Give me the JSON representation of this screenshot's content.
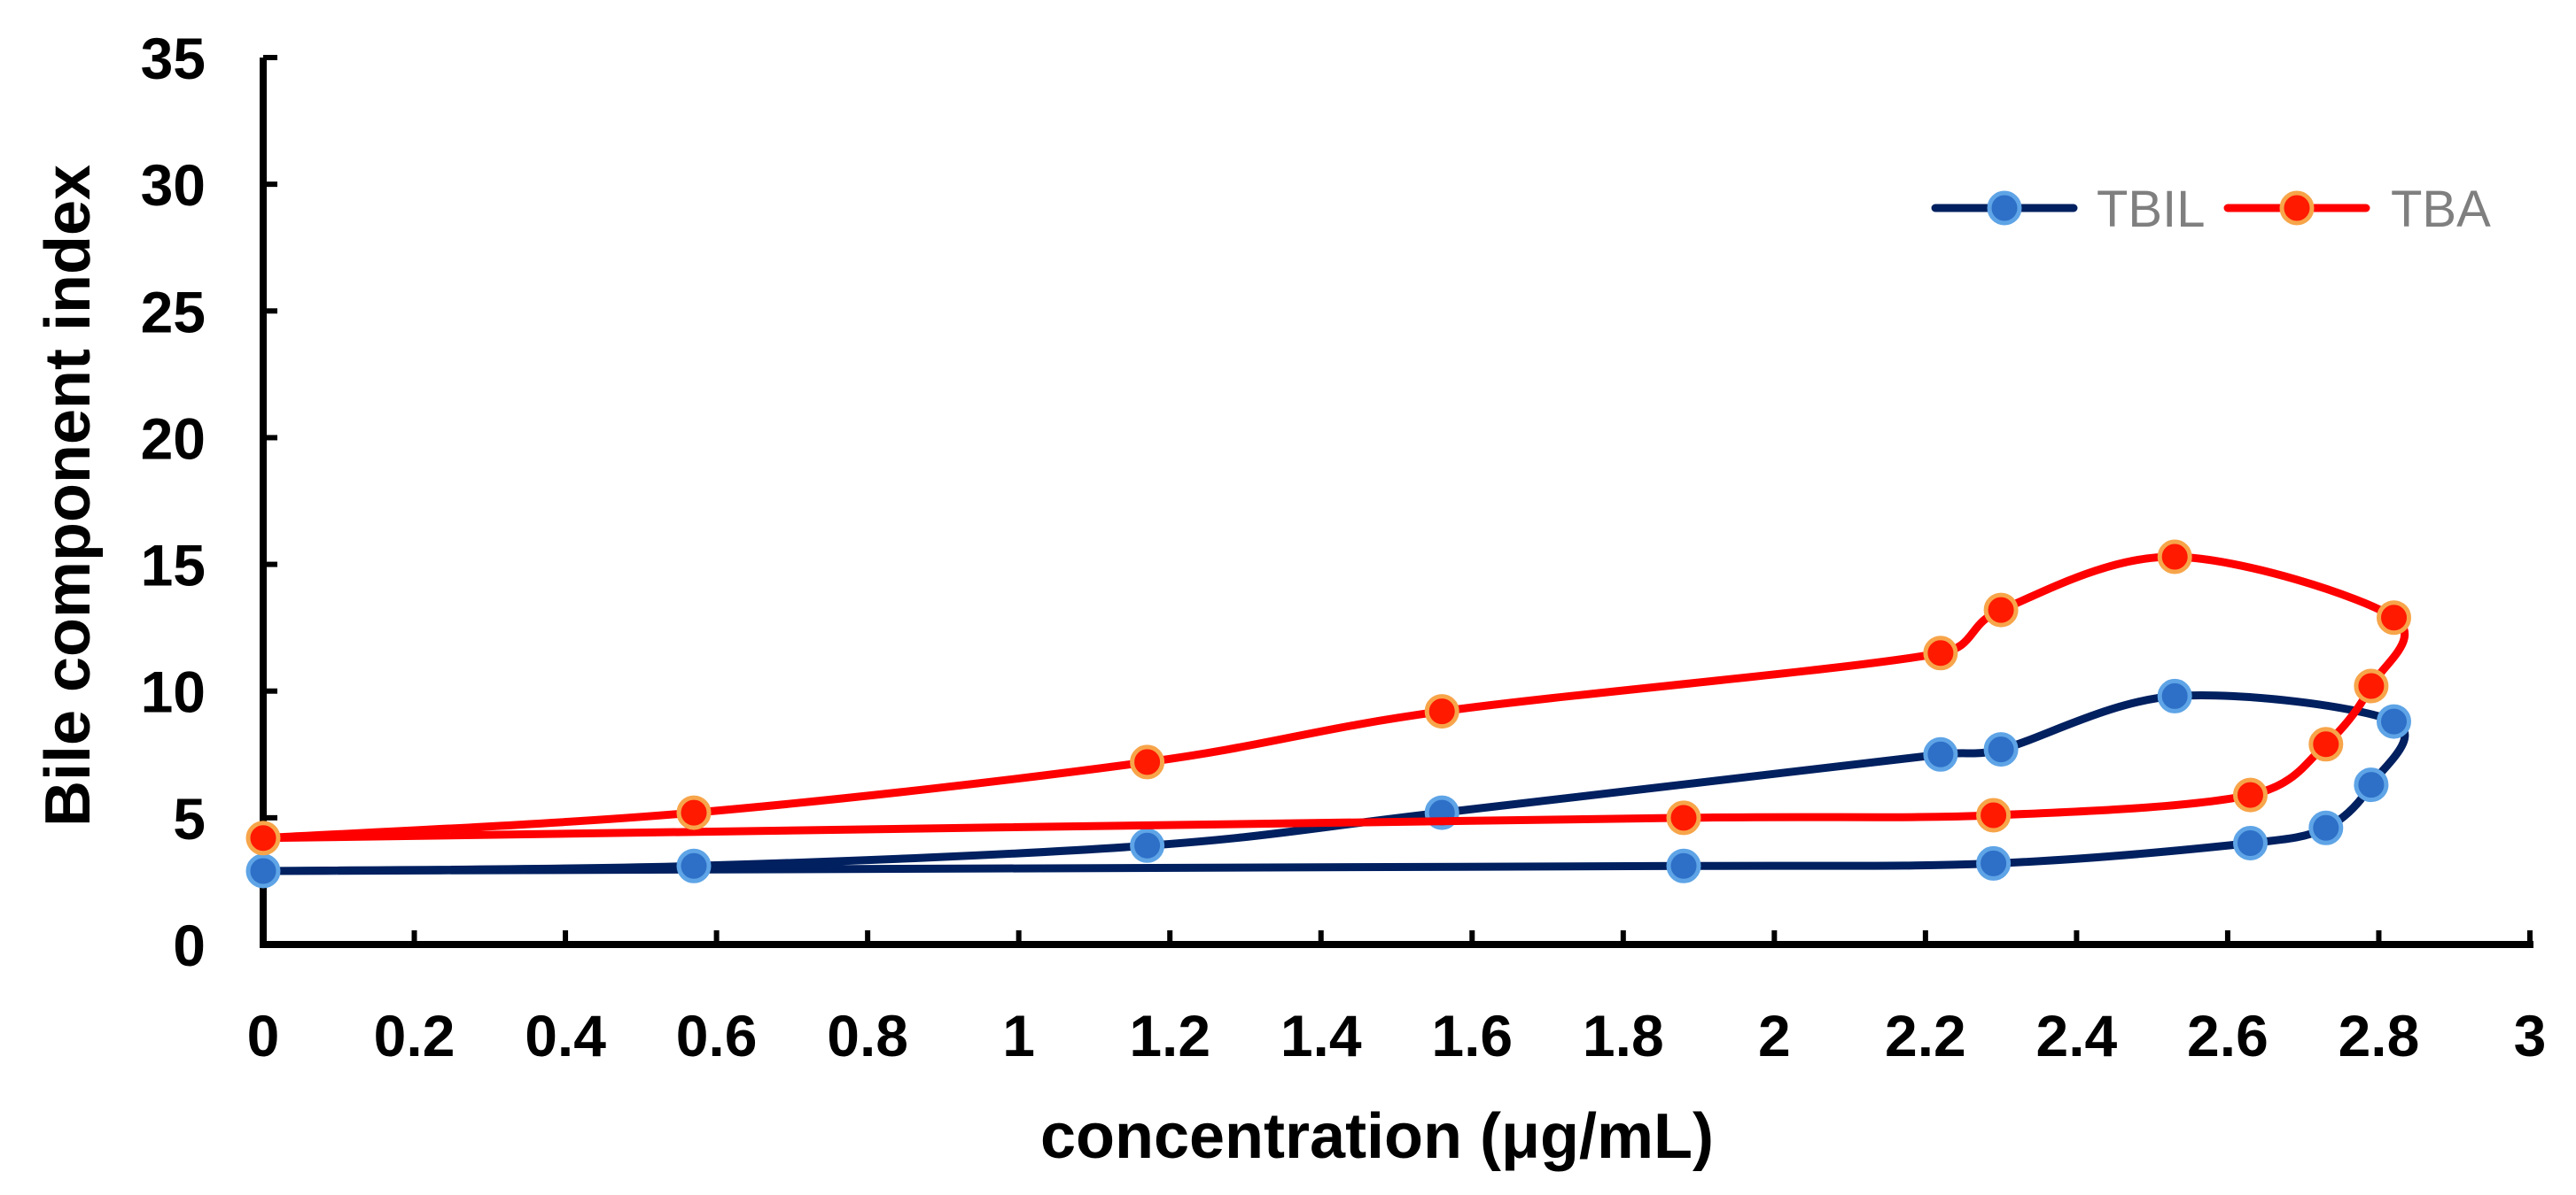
{
  "chart_data": {
    "type": "line",
    "title": "",
    "xlabel": "concentration (μg/mL)",
    "ylabel": "Bile component index",
    "xlim": [
      0,
      3
    ],
    "ylim": [
      0,
      35
    ],
    "x_ticks": [
      "0",
      "0.2",
      "0.4",
      "0.6",
      "0.8",
      "1",
      "1.2",
      "1.4",
      "1.6",
      "1.8",
      "2",
      "2.2",
      "2.4",
      "2.6",
      "2.8",
      "3"
    ],
    "y_ticks": [
      "0",
      "5",
      "10",
      "15",
      "20",
      "25",
      "30",
      "35"
    ],
    "grid": false,
    "legend_position": "top-right",
    "series": [
      {
        "name": "TBIL",
        "color": "#002060",
        "marker_fill": "#2e6fc7",
        "marker_stroke": "#5ea4e6",
        "closed": true,
        "x": [
          0,
          0.57,
          1.17,
          1.56,
          2.22,
          2.3,
          2.53,
          2.82,
          2.79,
          2.73,
          2.63,
          2.29,
          1.88
        ],
        "y": [
          2.9,
          3.1,
          3.9,
          5.2,
          7.5,
          7.7,
          9.8,
          8.8,
          6.3,
          4.6,
          4.0,
          3.2,
          3.1
        ]
      },
      {
        "name": "TBA",
        "color": "#ff0000",
        "marker_fill": "#ff1a00",
        "marker_stroke": "#f7a54a",
        "closed": true,
        "x": [
          0,
          0.57,
          1.17,
          1.56,
          2.22,
          2.3,
          2.53,
          2.82,
          2.79,
          2.73,
          2.63,
          2.29,
          1.88
        ],
        "y": [
          4.2,
          5.2,
          7.2,
          9.2,
          11.5,
          13.2,
          15.3,
          12.9,
          10.2,
          7.9,
          5.9,
          5.1,
          5.0
        ]
      }
    ]
  }
}
